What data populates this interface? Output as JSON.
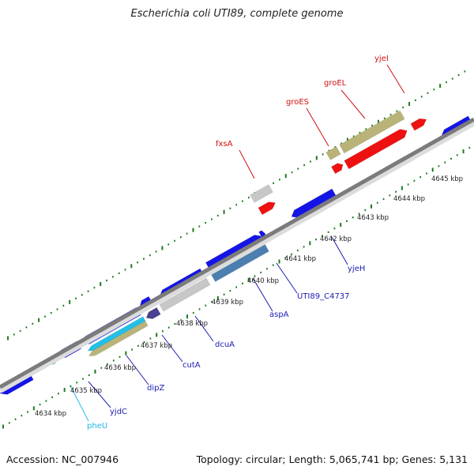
{
  "title": "Escherichia coli UTI89, complete genome",
  "footer": {
    "accession": "Accession: NC_007946",
    "summary": "Topology: circular; Length: 5,065,741 bp; Genes: 5,131"
  },
  "colors": {
    "backbone": "#808080",
    "tick": "#1f7a1f",
    "cds": "#1414e6",
    "rrna": "#ee1111",
    "trna": "#22bfe8",
    "misc": "#c7c7c7",
    "tan": "#b9b37a",
    "steel": "#4a7fb0",
    "purple": "#4b3f8f",
    "label_blue": "#1a1ab4",
    "label_red": "#d01010",
    "label_cyan": "#20b4e6"
  },
  "scale_labels": [
    "4634 kbp",
    "4635 kbp",
    "4636 kbp",
    "4637 kbp",
    "4638 kbp",
    "4639 kbp",
    "4640 kbp",
    "4641 kbp",
    "4642 kbp",
    "4643 kbp",
    "4644 kbp",
    "4645 kbp"
  ],
  "gene_labels": [
    {
      "id": "pheU",
      "text": "pheU",
      "color": "cyan"
    },
    {
      "id": "yjdC",
      "text": "yjdC",
      "color": "blue"
    },
    {
      "id": "dipZ",
      "text": "dipZ",
      "color": "blue"
    },
    {
      "id": "cutA",
      "text": "cutA",
      "color": "blue"
    },
    {
      "id": "dcuA",
      "text": "dcuA",
      "color": "blue"
    },
    {
      "id": "aspA",
      "text": "aspA",
      "color": "blue"
    },
    {
      "id": "UTI89_C4737",
      "text": "UTI89_C4737",
      "color": "blue"
    },
    {
      "id": "yjeH",
      "text": "yjeH",
      "color": "blue"
    },
    {
      "id": "fxsA",
      "text": "fxsA",
      "color": "red"
    },
    {
      "id": "groES",
      "text": "groES",
      "color": "red"
    },
    {
      "id": "groEL",
      "text": "groEL",
      "color": "red"
    },
    {
      "id": "yjeI",
      "text": "yjeI",
      "color": "red"
    }
  ]
}
